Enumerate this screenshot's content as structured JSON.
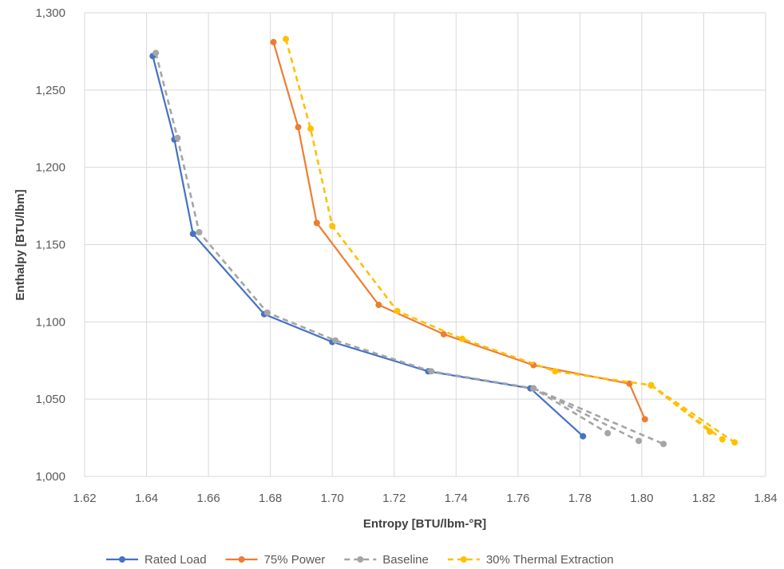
{
  "colors": {
    "rated": "#4472C4",
    "power75": "#ED7D31",
    "baseline": "#A5A5A5",
    "thermal": "#FFC000",
    "grid": "#D9D9D9",
    "axis_text": "#595959"
  },
  "chart_data": {
    "type": "line",
    "xlabel": "Entropy [BTU/lbm-°R]",
    "ylabel": "Enthalpy [BTU/lbm]",
    "xlim": [
      1.62,
      1.84
    ],
    "ylim": [
      1000,
      1300
    ],
    "xticks": [
      "1.62",
      "1.64",
      "1.66",
      "1.68",
      "1.70",
      "1.72",
      "1.74",
      "1.76",
      "1.78",
      "1.80",
      "1.82",
      "1.84"
    ],
    "yticks": [
      "1,000",
      "1,050",
      "1,100",
      "1,150",
      "1,200",
      "1,250",
      "1,300"
    ],
    "grid": true,
    "legend_position": "bottom",
    "series": [
      {
        "name": "Rated Load",
        "style": "solid",
        "color": "#4472C4",
        "x": [
          1.642,
          1.649,
          1.655,
          1.678,
          1.7,
          1.731,
          1.764,
          1.781
        ],
        "y": [
          1272,
          1218,
          1157,
          1105,
          1087,
          1068,
          1057,
          1026
        ]
      },
      {
        "name": "75% Power",
        "style": "solid",
        "color": "#ED7D31",
        "x": [
          1.681,
          1.689,
          1.695,
          1.715,
          1.736,
          1.765,
          1.796,
          1.801
        ],
        "y": [
          1281,
          1226,
          1164,
          1111,
          1092,
          1072,
          1060,
          1037
        ]
      },
      {
        "name": "Baseline",
        "style": "dashed",
        "color": "#A5A5A5",
        "segments": [
          {
            "x": [
              1.643,
              1.65,
              1.657,
              1.679,
              1.701,
              1.732,
              1.765,
              1.789
            ],
            "y": [
              1274,
              1219,
              1158,
              1106,
              1088,
              1068,
              1057,
              1028
            ]
          },
          {
            "x": [
              1.765,
              1.799
            ],
            "y": [
              1057,
              1023
            ]
          },
          {
            "x": [
              1.765,
              1.807
            ],
            "y": [
              1057,
              1021
            ]
          }
        ]
      },
      {
        "name": "30% Thermal Extraction",
        "style": "dashed",
        "color": "#FFC000",
        "segments": [
          {
            "x": [
              1.685,
              1.693,
              1.7,
              1.721,
              1.742,
              1.772,
              1.803,
              1.822
            ],
            "y": [
              1283,
              1225,
              1162,
              1107,
              1089,
              1068,
              1059,
              1029
            ]
          },
          {
            "x": [
              1.803,
              1.826
            ],
            "y": [
              1059,
              1024
            ]
          },
          {
            "x": [
              1.803,
              1.83
            ],
            "y": [
              1059,
              1022
            ]
          }
        ]
      }
    ]
  }
}
